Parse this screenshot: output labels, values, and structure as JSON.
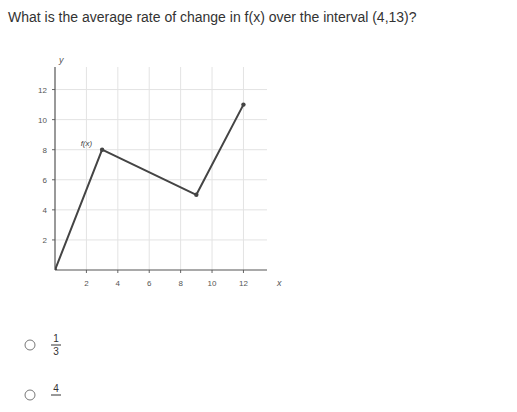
{
  "question": "What is the average rate of change in f(x) over the interval (4,13)?",
  "chart_data": {
    "type": "line",
    "x": [
      0,
      3,
      9,
      12
    ],
    "values": [
      0,
      8,
      5,
      11
    ],
    "xlim": [
      0,
      13.5
    ],
    "ylim": [
      0,
      13.5
    ],
    "xticks": [
      2,
      4,
      6,
      8,
      10,
      12
    ],
    "yticks": [
      2,
      4,
      6,
      8,
      10,
      12
    ],
    "x_label": "x",
    "y_label": "y",
    "grid": true,
    "color": "#444444",
    "marker": "circle",
    "annotations": [
      {
        "text": "f(x)",
        "x": 2,
        "y": 8
      }
    ]
  },
  "options": [
    {
      "numerator": "1",
      "denominator": "3"
    },
    {
      "numerator": "4"
    }
  ]
}
